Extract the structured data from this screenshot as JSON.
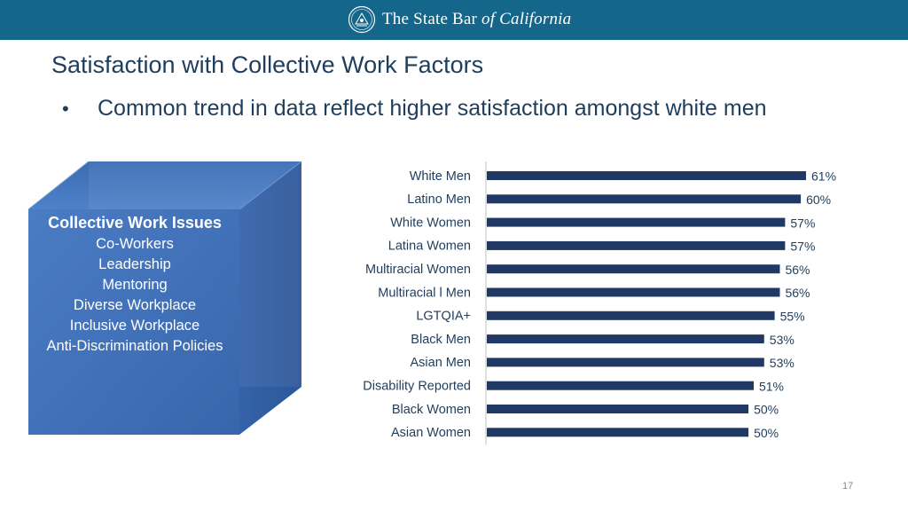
{
  "header": {
    "logo_text_main": "The State Bar ",
    "logo_text_italic": "of California",
    "seal_icon": "state-bar-seal-icon",
    "bar_color": "#14668b"
  },
  "slide": {
    "title": "Satisfaction with Collective Work Factors",
    "bullet_symbol": "•",
    "bullet_text": "Common trend in data reflect higher satisfaction amongst white men",
    "page_number": "17"
  },
  "issues_box": {
    "heading": "Collective Work Issues",
    "items": [
      "Co-Workers",
      "Leadership",
      "Mentoring",
      "Diverse Workplace",
      "Inclusive Workplace",
      "Anti-Discrimination Policies"
    ],
    "color": "#3f6fb5"
  },
  "chart_data": {
    "type": "bar",
    "orientation": "horizontal",
    "title": "",
    "xlabel": "",
    "ylabel": "",
    "xlim": [
      0,
      61
    ],
    "categories": [
      "White Men",
      "Latino Men",
      "White Women",
      "Latina Women",
      "Multiracial Women",
      "Multiracial l Men",
      "LGTQIA+",
      "Black Men",
      "Asian Men",
      "Disability Reported",
      "Black Women",
      "Asian Women"
    ],
    "values": [
      61,
      60,
      57,
      57,
      56,
      56,
      55,
      53,
      53,
      51,
      50,
      50
    ],
    "value_labels": [
      "61%",
      "60%",
      "57%",
      "57%",
      "56%",
      "56%",
      "55%",
      "53%",
      "53%",
      "51%",
      "50%",
      "50%"
    ],
    "bar_color": "#1f3864",
    "grid": false,
    "legend": "none"
  }
}
